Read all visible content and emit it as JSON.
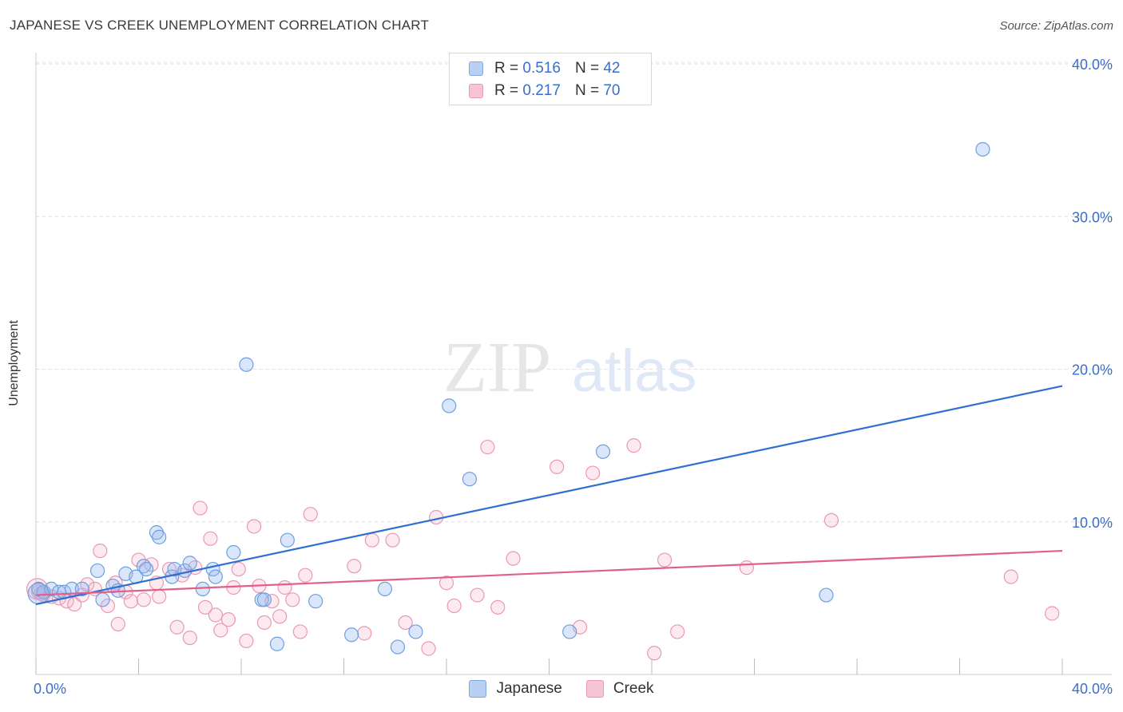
{
  "title": "JAPANESE VS CREEK UNEMPLOYMENT CORRELATION CHART",
  "source": "Source: ZipAtlas.com",
  "watermark": {
    "part1": "ZIP",
    "part2": "atlas"
  },
  "legend": {
    "japanese": {
      "r_label": "R =",
      "r_value": "0.516",
      "n_label": "N =",
      "n_value": "42",
      "color": "#4a7fd4",
      "fill": "#b8d0f4"
    },
    "creek": {
      "r_label": "R =",
      "r_value": "0.217",
      "n_label": "N =",
      "n_value": "70",
      "color": "#e0608a",
      "fill": "#f7c4d4"
    }
  },
  "bottom_legend": {
    "japanese": "Japanese",
    "creek": "Creek"
  },
  "chart_data": {
    "type": "scatter",
    "title": "JAPANESE VS CREEK UNEMPLOYMENT CORRELATION CHART",
    "xlabel": "",
    "ylabel": "Unemployment",
    "xlim": [
      0,
      40
    ],
    "ylim": [
      0,
      40
    ],
    "x_tick_labels": [
      "0.0%",
      "40.0%"
    ],
    "y_tick_labels": [
      "10.0%",
      "20.0%",
      "30.0%",
      "40.0%"
    ],
    "y_ticks": [
      10,
      20,
      30,
      40
    ],
    "grid": true,
    "legend_position": "top-center",
    "series": [
      {
        "name": "Japanese",
        "color": "#4a7fd4",
        "trend": [
          [
            0,
            4.6
          ],
          [
            40,
            18.9
          ]
        ],
        "points": [
          [
            0.1,
            5.6
          ],
          [
            0.3,
            5.4
          ],
          [
            0.6,
            5.6
          ],
          [
            0.9,
            5.4
          ],
          [
            1.1,
            5.4
          ],
          [
            1.4,
            5.6
          ],
          [
            1.8,
            5.6
          ],
          [
            2.4,
            6.8
          ],
          [
            2.6,
            4.9
          ],
          [
            3.0,
            5.8
          ],
          [
            3.2,
            5.5
          ],
          [
            3.5,
            6.6
          ],
          [
            3.9,
            6.4
          ],
          [
            4.2,
            7.1
          ],
          [
            4.3,
            6.9
          ],
          [
            4.7,
            9.3
          ],
          [
            4.8,
            9.0
          ],
          [
            5.3,
            6.4
          ],
          [
            5.4,
            6.9
          ],
          [
            5.8,
            6.8
          ],
          [
            6.0,
            7.3
          ],
          [
            6.5,
            5.6
          ],
          [
            6.9,
            6.9
          ],
          [
            7.0,
            6.4
          ],
          [
            7.7,
            8.0
          ],
          [
            8.2,
            20.3
          ],
          [
            8.8,
            4.9
          ],
          [
            8.9,
            4.9
          ],
          [
            9.4,
            2.0
          ],
          [
            9.8,
            8.8
          ],
          [
            10.9,
            4.8
          ],
          [
            12.3,
            2.6
          ],
          [
            13.6,
            5.6
          ],
          [
            14.1,
            1.8
          ],
          [
            14.8,
            2.8
          ],
          [
            16.1,
            17.6
          ],
          [
            16.9,
            12.8
          ],
          [
            20.8,
            2.8
          ],
          [
            22.1,
            14.6
          ],
          [
            30.8,
            5.2
          ],
          [
            36.9,
            34.4
          ],
          [
            0.1,
            5.3
          ]
        ]
      },
      {
        "name": "Creek",
        "color": "#e0608a",
        "trend": [
          [
            0,
            5.2
          ],
          [
            40,
            8.1
          ]
        ],
        "points": [
          [
            0.1,
            5.4
          ],
          [
            0.3,
            5.2
          ],
          [
            0.6,
            5.1
          ],
          [
            0.9,
            5.0
          ],
          [
            1.2,
            4.8
          ],
          [
            1.5,
            4.6
          ],
          [
            1.8,
            5.2
          ],
          [
            2.0,
            5.9
          ],
          [
            2.3,
            5.6
          ],
          [
            2.5,
            8.1
          ],
          [
            2.8,
            4.5
          ],
          [
            3.1,
            6.0
          ],
          [
            3.2,
            3.3
          ],
          [
            3.5,
            5.4
          ],
          [
            3.7,
            4.8
          ],
          [
            4.0,
            7.5
          ],
          [
            4.2,
            4.9
          ],
          [
            4.5,
            7.2
          ],
          [
            4.7,
            6.0
          ],
          [
            4.8,
            5.1
          ],
          [
            5.2,
            6.9
          ],
          [
            5.5,
            3.1
          ],
          [
            5.7,
            6.5
          ],
          [
            6.0,
            2.4
          ],
          [
            6.2,
            7.0
          ],
          [
            6.4,
            10.9
          ],
          [
            6.6,
            4.4
          ],
          [
            6.8,
            8.9
          ],
          [
            7.0,
            3.9
          ],
          [
            7.2,
            2.9
          ],
          [
            7.5,
            3.6
          ],
          [
            7.7,
            5.7
          ],
          [
            7.9,
            6.9
          ],
          [
            8.2,
            2.2
          ],
          [
            8.5,
            9.7
          ],
          [
            8.7,
            5.8
          ],
          [
            8.9,
            3.4
          ],
          [
            9.2,
            4.8
          ],
          [
            9.5,
            3.8
          ],
          [
            9.7,
            5.7
          ],
          [
            10.0,
            4.9
          ],
          [
            10.3,
            2.8
          ],
          [
            10.5,
            6.5
          ],
          [
            10.7,
            10.5
          ],
          [
            12.4,
            7.1
          ],
          [
            12.8,
            2.7
          ],
          [
            13.1,
            8.8
          ],
          [
            13.9,
            8.8
          ],
          [
            14.4,
            3.4
          ],
          [
            15.3,
            1.7
          ],
          [
            15.6,
            10.3
          ],
          [
            16.0,
            6.0
          ],
          [
            16.3,
            4.5
          ],
          [
            17.2,
            5.2
          ],
          [
            17.6,
            14.9
          ],
          [
            18.0,
            4.4
          ],
          [
            18.6,
            7.6
          ],
          [
            20.3,
            13.6
          ],
          [
            21.2,
            3.1
          ],
          [
            21.7,
            13.2
          ],
          [
            23.3,
            15.0
          ],
          [
            24.1,
            1.4
          ],
          [
            24.5,
            7.5
          ],
          [
            25.0,
            2.8
          ],
          [
            27.7,
            7.0
          ],
          [
            31.0,
            10.1
          ],
          [
            38.0,
            6.4
          ],
          [
            39.6,
            4.0
          ],
          [
            0.05,
            5.6
          ],
          [
            0.2,
            5.3
          ]
        ]
      }
    ]
  }
}
